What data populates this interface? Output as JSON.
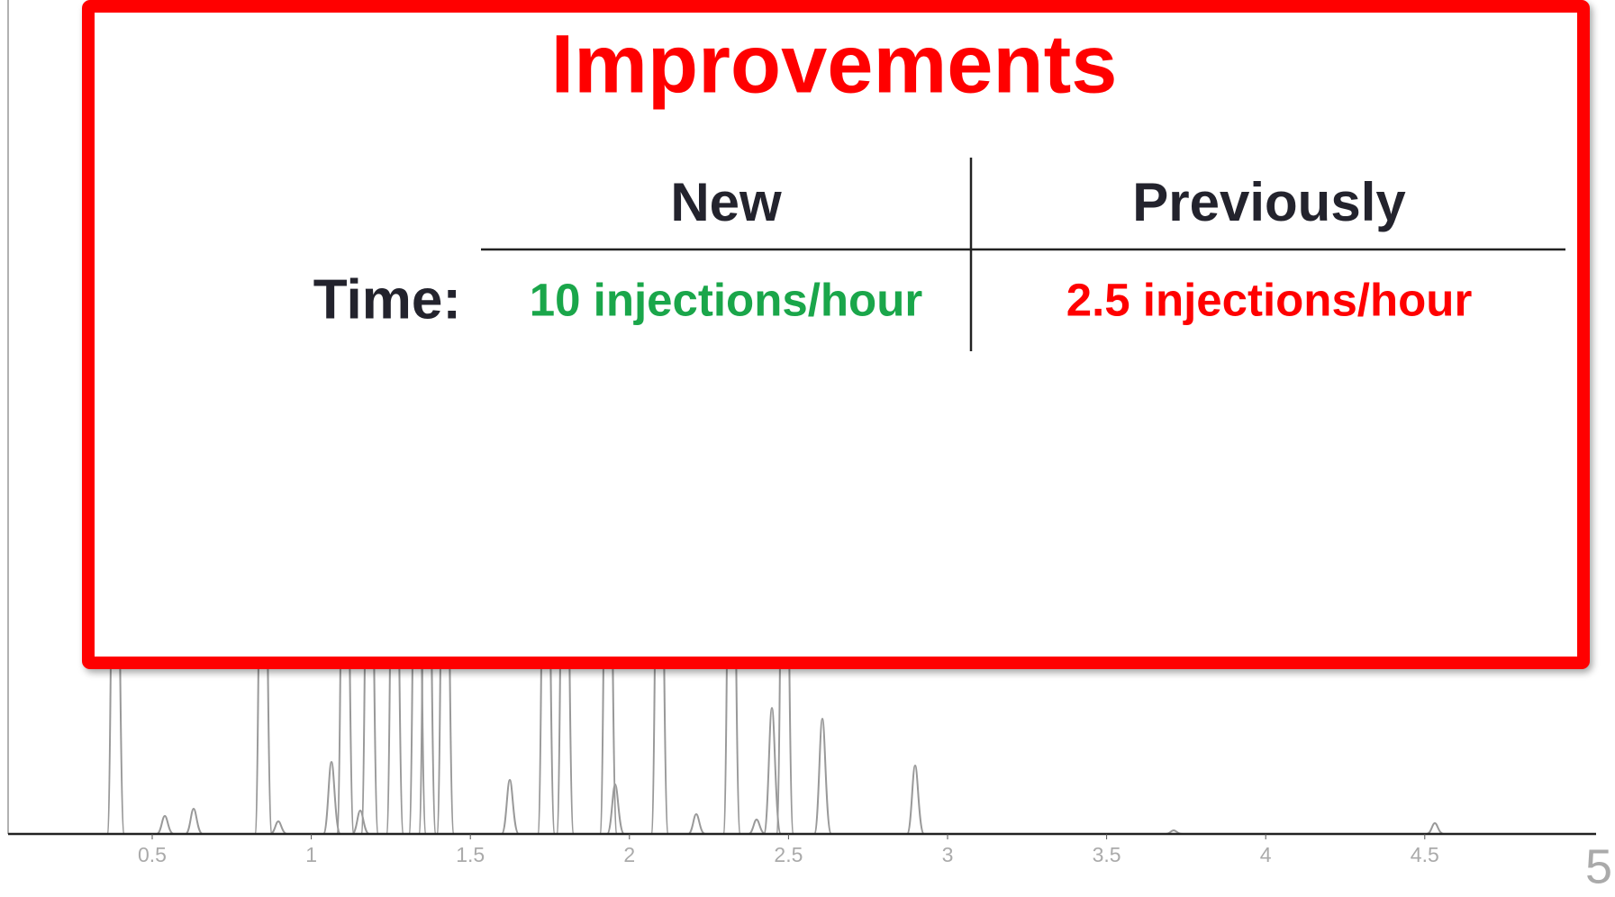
{
  "slide": {
    "title": "Improvements",
    "table": {
      "headers": [
        "New",
        "Previously"
      ],
      "rows": [
        {
          "label": "Time:",
          "cells": [
            "10 injections/hour",
            "2.5 injections/hour"
          ]
        }
      ]
    },
    "axis_labels": [
      "0.5",
      "1",
      "1.5",
      "2",
      "2.5",
      "3",
      "3.5",
      "4",
      "4.5"
    ],
    "page_number": "5"
  }
}
